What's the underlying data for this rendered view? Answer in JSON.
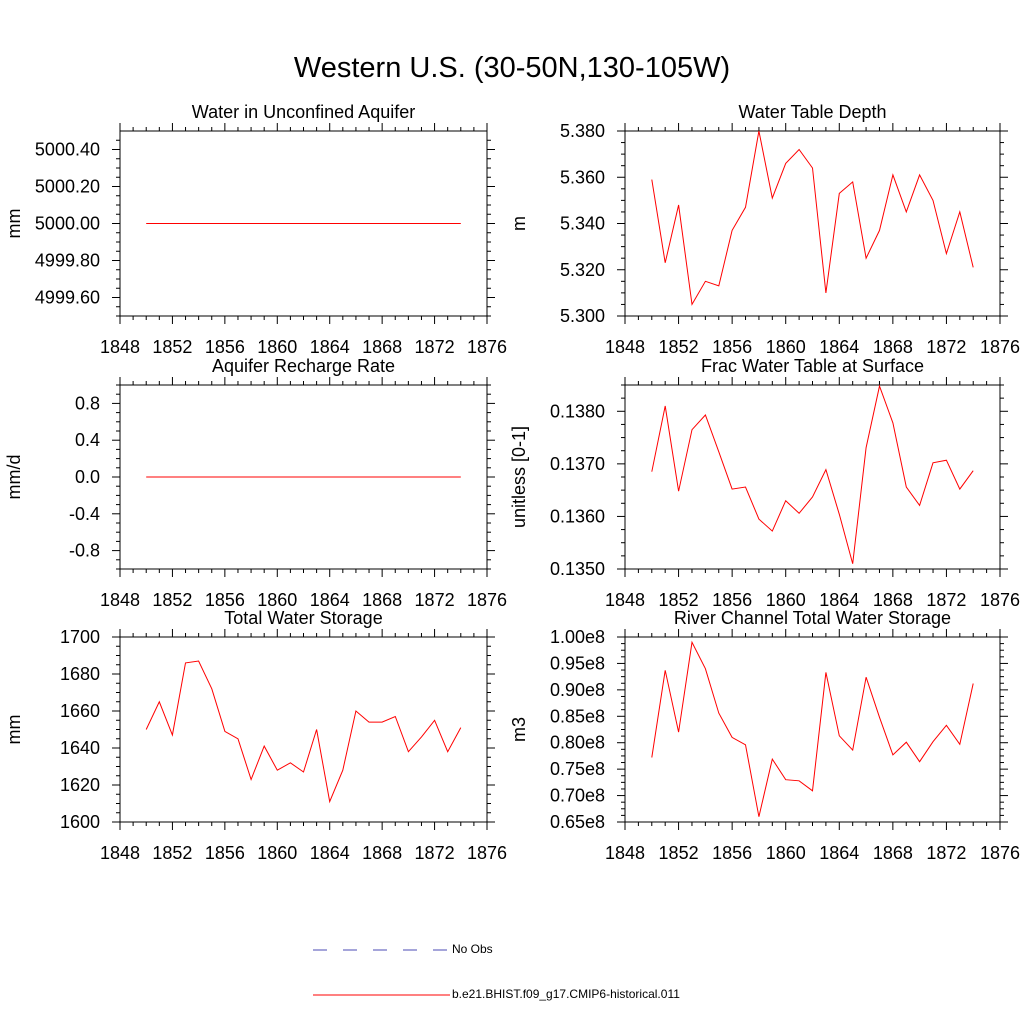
{
  "title": "Western U.S. (30-50N,130-105W)",
  "legend": {
    "entries": [
      {
        "label": "No Obs",
        "color": "#4b4bb4",
        "style": "dashed"
      },
      {
        "label": "b.e21.BHIST.f09_g17.CMIP6-historical.011",
        "color": "#ff0000",
        "style": "solid"
      }
    ]
  },
  "chart_data": [
    {
      "type": "line",
      "title": "Water in Unconfined Aquifer",
      "ylabel": "mm",
      "xlim": [
        1848,
        1876
      ],
      "ylim": [
        4999.5,
        5000.5
      ],
      "xticks": [
        1848,
        1852,
        1856,
        1860,
        1864,
        1868,
        1872,
        1876
      ],
      "yticks": [
        4999.6,
        4999.8,
        5000.0,
        5000.2,
        5000.4
      ],
      "ytick_labels": [
        "4999.60",
        "4999.80",
        "5000.00",
        "5000.20",
        "5000.40"
      ],
      "x": [
        1850,
        1851,
        1852,
        1853,
        1854,
        1855,
        1856,
        1857,
        1858,
        1859,
        1860,
        1861,
        1862,
        1863,
        1864,
        1865,
        1866,
        1867,
        1868,
        1869,
        1870,
        1871,
        1872,
        1873,
        1874
      ],
      "values": [
        5000,
        5000,
        5000,
        5000,
        5000,
        5000,
        5000,
        5000,
        5000,
        5000,
        5000,
        5000,
        5000,
        5000,
        5000,
        5000,
        5000,
        5000,
        5000,
        5000,
        5000,
        5000,
        5000,
        5000,
        5000
      ]
    },
    {
      "type": "line",
      "title": "Water Table Depth",
      "ylabel": "m",
      "xlim": [
        1848,
        1876
      ],
      "ylim": [
        5.3,
        5.38
      ],
      "xticks": [
        1848,
        1852,
        1856,
        1860,
        1864,
        1868,
        1872,
        1876
      ],
      "yticks": [
        5.3,
        5.32,
        5.34,
        5.36,
        5.38
      ],
      "ytick_labels": [
        "5.300",
        "5.320",
        "5.340",
        "5.360",
        "5.380"
      ],
      "x": [
        1850,
        1851,
        1852,
        1853,
        1854,
        1855,
        1856,
        1857,
        1858,
        1859,
        1860,
        1861,
        1862,
        1863,
        1864,
        1865,
        1866,
        1867,
        1868,
        1869,
        1870,
        1871,
        1872,
        1873,
        1874
      ],
      "values": [
        5.359,
        5.323,
        5.348,
        5.305,
        5.315,
        5.313,
        5.337,
        5.347,
        5.38,
        5.351,
        5.366,
        5.372,
        5.364,
        5.31,
        5.353,
        5.358,
        5.325,
        5.337,
        5.361,
        5.345,
        5.361,
        5.35,
        5.327,
        5.345,
        5.321
      ]
    },
    {
      "type": "line",
      "title": "Aquifer Recharge Rate",
      "ylabel": "mm/d",
      "xlim": [
        1848,
        1876
      ],
      "ylim": [
        -1.0,
        1.0
      ],
      "xticks": [
        1848,
        1852,
        1856,
        1860,
        1864,
        1868,
        1872,
        1876
      ],
      "yticks": [
        -0.8,
        -0.4,
        0.0,
        0.4,
        0.8
      ],
      "ytick_labels": [
        "-0.8",
        "-0.4",
        "0.0",
        "0.4",
        "0.8"
      ],
      "x": [
        1850,
        1851,
        1852,
        1853,
        1854,
        1855,
        1856,
        1857,
        1858,
        1859,
        1860,
        1861,
        1862,
        1863,
        1864,
        1865,
        1866,
        1867,
        1868,
        1869,
        1870,
        1871,
        1872,
        1873,
        1874
      ],
      "values": [
        0,
        0,
        0,
        0,
        0,
        0,
        0,
        0,
        0,
        0,
        0,
        0,
        0,
        0,
        0,
        0,
        0,
        0,
        0,
        0,
        0,
        0,
        0,
        0,
        0
      ]
    },
    {
      "type": "line",
      "title": "Frac Water Table at Surface",
      "ylabel": "unitless [0-1]",
      "xlim": [
        1848,
        1876
      ],
      "ylim": [
        0.135,
        0.1385
      ],
      "xticks": [
        1848,
        1852,
        1856,
        1860,
        1864,
        1868,
        1872,
        1876
      ],
      "yticks": [
        0.135,
        0.136,
        0.137,
        0.138
      ],
      "ytick_labels": [
        "0.1350",
        "0.1360",
        "0.1370",
        "0.1380"
      ],
      "x": [
        1850,
        1851,
        1852,
        1853,
        1854,
        1855,
        1856,
        1857,
        1858,
        1859,
        1860,
        1861,
        1862,
        1863,
        1864,
        1865,
        1866,
        1867,
        1868,
        1869,
        1870,
        1871,
        1872,
        1873,
        1874
      ],
      "values": [
        0.13685,
        0.1381,
        0.13648,
        0.13765,
        0.13793,
        0.13723,
        0.13652,
        0.13656,
        0.13595,
        0.13572,
        0.1363,
        0.13606,
        0.13637,
        0.13689,
        0.13604,
        0.1351,
        0.13731,
        0.13848,
        0.13778,
        0.13656,
        0.13621,
        0.13702,
        0.13707,
        0.13652,
        0.13687
      ]
    },
    {
      "type": "line",
      "title": "Total Water Storage",
      "ylabel": "mm",
      "xlim": [
        1848,
        1876
      ],
      "ylim": [
        1600,
        1700
      ],
      "xticks": [
        1848,
        1852,
        1856,
        1860,
        1864,
        1868,
        1872,
        1876
      ],
      "yticks": [
        1600,
        1620,
        1640,
        1660,
        1680,
        1700
      ],
      "ytick_labels": [
        "1600",
        "1620",
        "1640",
        "1660",
        "1680",
        "1700"
      ],
      "x": [
        1850,
        1851,
        1852,
        1853,
        1854,
        1855,
        1856,
        1857,
        1858,
        1859,
        1860,
        1861,
        1862,
        1863,
        1864,
        1865,
        1866,
        1867,
        1868,
        1869,
        1870,
        1871,
        1872,
        1873,
        1874
      ],
      "values": [
        1650,
        1665,
        1647,
        1686,
        1687,
        1672,
        1649,
        1645,
        1623,
        1641,
        1628,
        1632,
        1627,
        1650,
        1611,
        1628,
        1660,
        1654,
        1654,
        1657,
        1638,
        1646,
        1655,
        1638,
        1651
      ]
    },
    {
      "type": "line",
      "title": "River Channel Total Water Storage",
      "ylabel": "m3",
      "xlim": [
        1848,
        1876
      ],
      "ylim": [
        0.65,
        1.0
      ],
      "xticks": [
        1848,
        1852,
        1856,
        1860,
        1864,
        1868,
        1872,
        1876
      ],
      "yticks": [
        0.65,
        0.7,
        0.75,
        0.8,
        0.85,
        0.9,
        0.95,
        1.0
      ],
      "ytick_labels": [
        "0.65e8",
        "0.70e8",
        "0.75e8",
        "0.80e8",
        "0.85e8",
        "0.90e8",
        "0.95e8",
        "1.00e8"
      ],
      "x": [
        1850,
        1851,
        1852,
        1853,
        1854,
        1855,
        1856,
        1857,
        1858,
        1859,
        1860,
        1861,
        1862,
        1863,
        1864,
        1865,
        1866,
        1867,
        1868,
        1869,
        1870,
        1871,
        1872,
        1873,
        1874
      ],
      "values": [
        0.772,
        0.937,
        0.82,
        0.99,
        0.94,
        0.856,
        0.81,
        0.796,
        0.66,
        0.769,
        0.73,
        0.728,
        0.709,
        0.933,
        0.813,
        0.786,
        0.924,
        0.848,
        0.777,
        0.801,
        0.764,
        0.802,
        0.833,
        0.797,
        0.912
      ]
    }
  ]
}
